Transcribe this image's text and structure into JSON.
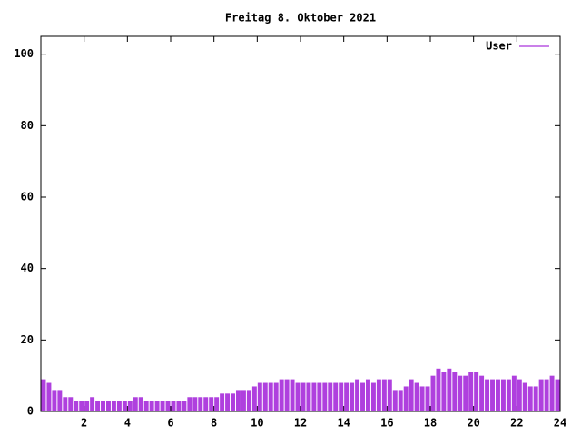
{
  "chart_data": {
    "type": "impulse",
    "title": "Freitag 8. Oktober 2021",
    "x": [
      0,
      0.25,
      0.5,
      0.75,
      1,
      1.25,
      1.5,
      1.75,
      2,
      2.25,
      2.5,
      2.75,
      3,
      3.25,
      3.5,
      3.75,
      4,
      4.25,
      4.5,
      4.75,
      5,
      5.25,
      5.5,
      5.75,
      6,
      6.25,
      6.5,
      6.75,
      7,
      7.25,
      7.5,
      7.75,
      8,
      8.25,
      8.5,
      8.75,
      9,
      9.25,
      9.5,
      9.75,
      10,
      10.25,
      10.5,
      10.75,
      11,
      11.25,
      11.5,
      11.75,
      12,
      12.25,
      12.5,
      12.75,
      13,
      13.25,
      13.5,
      13.75,
      14,
      14.25,
      14.5,
      14.75,
      15,
      15.25,
      15.5,
      15.75,
      16,
      16.25,
      16.5,
      16.75,
      17,
      17.25,
      17.5,
      17.75,
      18,
      18.25,
      18.5,
      18.75,
      19,
      19.25,
      19.5,
      19.75,
      20,
      20.25,
      20.5,
      20.75,
      21,
      21.25,
      21.5,
      21.75,
      22,
      22.25,
      22.5,
      22.75,
      23,
      23.25,
      23.5,
      23.75
    ],
    "series": [
      {
        "name": "User",
        "color": "#9400d3",
        "values": [
          9,
          8,
          6,
          6,
          4,
          4,
          3,
          3,
          3,
          4,
          3,
          3,
          3,
          3,
          3,
          3,
          3,
          4,
          4,
          3,
          3,
          3,
          3,
          3,
          3,
          3,
          3,
          4,
          4,
          4,
          4,
          4,
          4,
          5,
          5,
          5,
          6,
          6,
          6,
          7,
          8,
          8,
          8,
          8,
          9,
          9,
          9,
          8,
          8,
          8,
          8,
          8,
          8,
          8,
          8,
          8,
          8,
          8,
          9,
          8,
          9,
          8,
          9,
          9,
          9,
          6,
          6,
          7,
          9,
          8,
          7,
          7,
          10,
          12,
          11,
          12,
          11,
          10,
          10,
          11,
          11,
          10,
          9,
          9,
          9,
          9,
          9,
          10,
          9,
          8,
          7,
          7,
          9,
          9,
          10,
          9
        ]
      }
    ],
    "xlim": [
      0,
      24
    ],
    "xticks": [
      2,
      4,
      6,
      8,
      10,
      12,
      14,
      16,
      18,
      20,
      22,
      24
    ],
    "ylim": [
      0,
      105
    ],
    "yticks": [
      0,
      20,
      40,
      60,
      80,
      100
    ],
    "legend": "top-right"
  }
}
